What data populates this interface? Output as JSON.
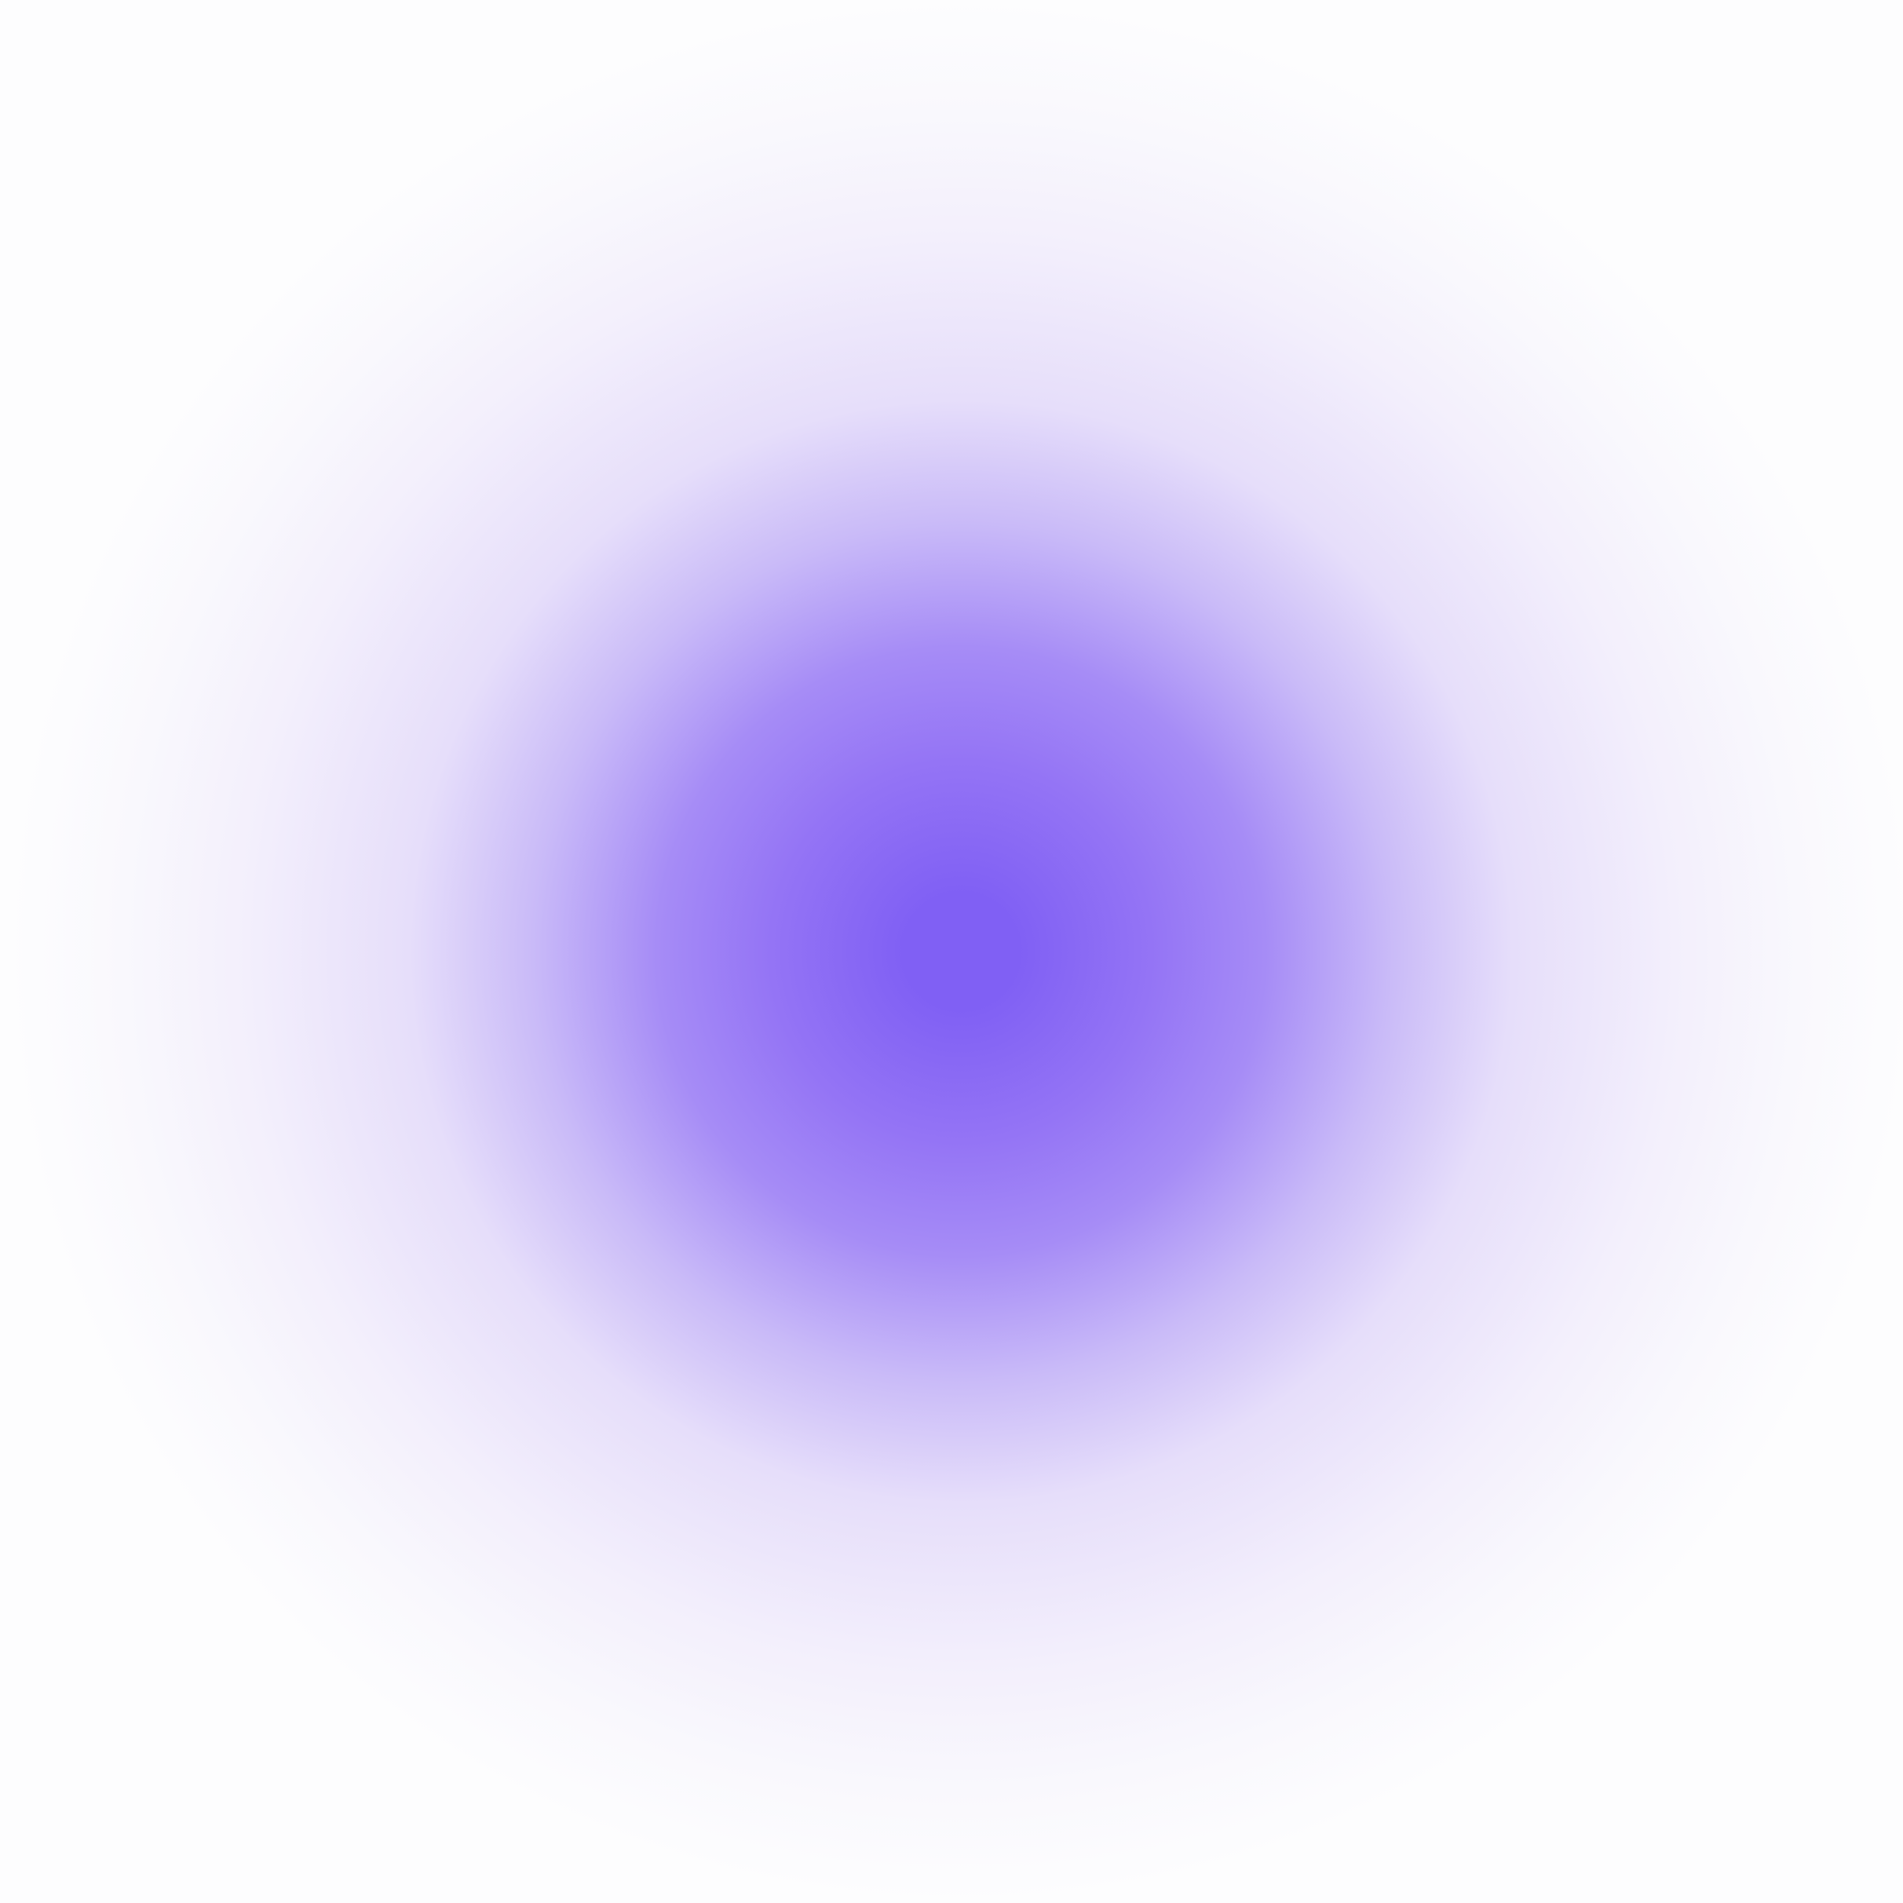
{
  "background": {
    "type": "radial-gradient",
    "center_color": "#8060F4",
    "mid_color": "#A68CF6",
    "outer_color": "#E6DEFA",
    "edge_color": "#FDFDFE"
  }
}
